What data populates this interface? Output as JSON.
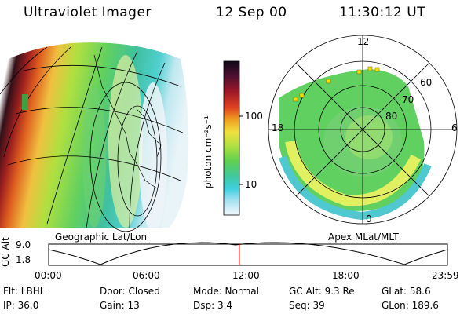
{
  "header": {
    "title": "Ultraviolet Imager",
    "date": "12 Sep 00",
    "time": "11:30:12 UT"
  },
  "left_panel": {
    "caption": "Geographic Lat/Lon"
  },
  "colorbar": {
    "unit_label": "photon cm⁻²s⁻¹",
    "ticks": [
      "100",
      "10"
    ]
  },
  "right_panel": {
    "caption": "Apex  MLat/MLT",
    "mlt_labels": [
      "12",
      "18",
      "6",
      "0"
    ],
    "lat_labels": [
      "60",
      "70",
      "80"
    ]
  },
  "timeline": {
    "axis_label": "GC Alt",
    "y_ticks": [
      "9.0",
      "1.8"
    ],
    "x_ticks": [
      "00:00",
      "06:00",
      "12:00",
      "18:00",
      "23:59"
    ],
    "current_time_fraction": 0.478
  },
  "info": {
    "row1": {
      "filter": "Flt: LBHL",
      "door": "Door: Closed",
      "mode": "Mode: Normal",
      "gc_alt": "GC Alt: 9.3 Re",
      "glat": "GLat:  58.6"
    },
    "row2": {
      "ip": "IP: 36.0",
      "gain": "Gain: 13",
      "dsp": "Dsp:    3.4",
      "seq": "Seq: 39",
      "glon": "GLon: 189.6"
    }
  },
  "colors": {
    "marker_line": "#cc0000",
    "marker_yellow": "#f0e000",
    "background": "#ffffff"
  }
}
